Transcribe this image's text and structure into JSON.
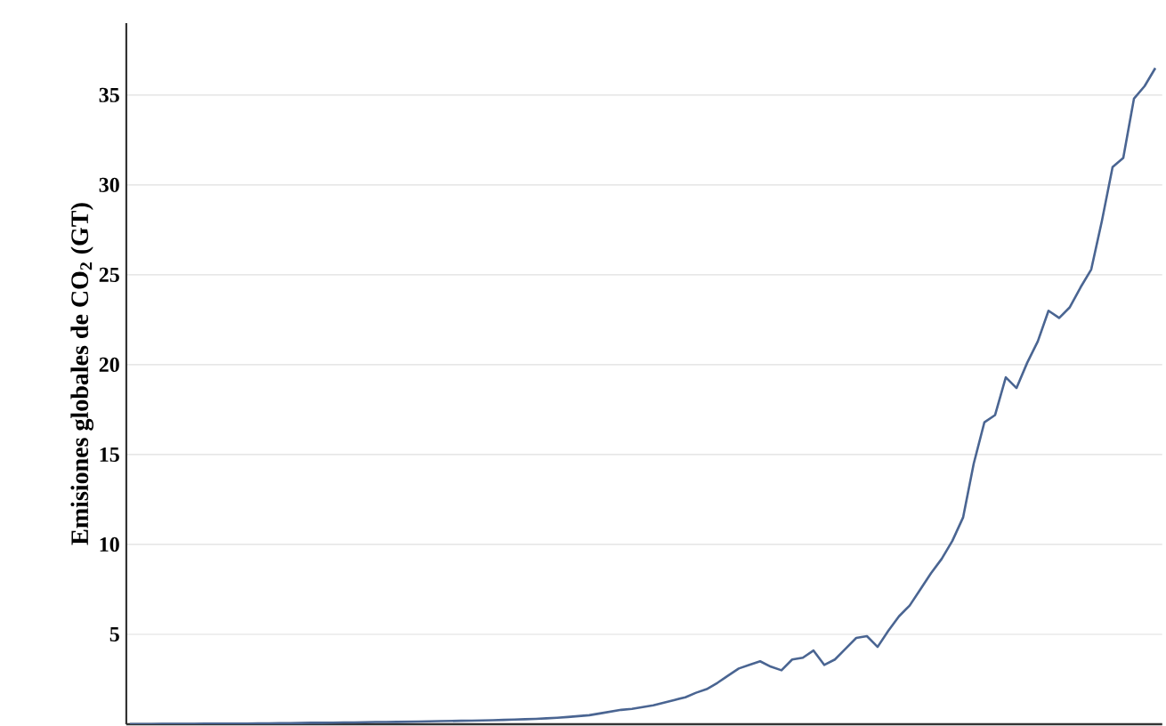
{
  "chart_data": {
    "type": "line",
    "ylabel": "Emisiones globales de CO$_{2}$ (GT)",
    "categories": [
      null,
      null,
      null,
      null,
      null,
      null,
      null,
      null,
      null,
      null,
      null,
      null,
      null,
      null,
      null,
      null,
      null,
      null,
      null,
      null,
      null,
      null,
      null,
      null,
      null,
      null,
      null,
      null,
      null,
      null,
      null,
      null,
      null,
      null,
      null,
      null,
      null,
      null,
      null,
      null,
      null,
      null,
      null,
      null,
      null,
      null,
      null,
      null,
      null,
      null,
      null,
      null,
      null,
      null,
      null,
      null,
      null,
      null,
      null,
      null,
      null,
      null,
      null,
      null,
      null,
      null,
      null,
      null,
      null,
      null,
      null,
      null,
      null,
      null,
      null,
      null,
      null,
      null,
      null,
      null,
      null,
      null,
      null,
      null,
      null,
      null,
      null,
      null,
      null,
      null,
      null,
      null,
      null,
      null,
      null,
      null,
      null
    ],
    "series": [
      {
        "color": "#4a6592",
        "values": [
          0.01,
          0.01,
          0.01,
          0.02,
          0.02,
          0.02,
          0.02,
          0.03,
          0.03,
          0.03,
          0.04,
          0.04,
          0.05,
          0.05,
          0.06,
          0.06,
          0.07,
          0.08,
          0.08,
          0.09,
          0.1,
          0.1,
          0.11,
          0.12,
          0.12,
          0.13,
          0.14,
          0.15,
          0.16,
          0.17,
          0.18,
          0.19,
          0.2,
          0.21,
          0.22,
          0.24,
          0.26,
          0.28,
          0.3,
          0.33,
          0.36,
          0.4,
          0.45,
          0.5,
          0.6,
          0.7,
          0.8,
          0.85,
          0.95,
          1.05,
          1.2,
          1.35,
          1.5,
          1.75,
          1.95,
          2.3,
          2.7,
          3.1,
          3.3,
          3.5,
          3.2,
          3.0,
          3.6,
          3.7,
          4.1,
          3.3,
          3.6,
          4.2,
          4.8,
          4.9,
          4.3,
          5.2,
          6.0,
          6.6,
          7.5,
          8.4,
          9.2,
          10.2,
          11.5,
          14.5,
          16.8,
          17.2,
          19.3,
          18.7,
          20.1,
          21.3,
          23.0,
          22.6,
          23.2,
          24.3,
          25.3,
          28.0,
          31.0,
          31.5,
          34.8,
          35.5,
          36.5
        ]
      }
    ],
    "ylim": [
      0,
      39
    ],
    "yticks": [
      5,
      10,
      15,
      20,
      25,
      30,
      35
    ],
    "grid": "y",
    "tick_labels": "y"
  }
}
